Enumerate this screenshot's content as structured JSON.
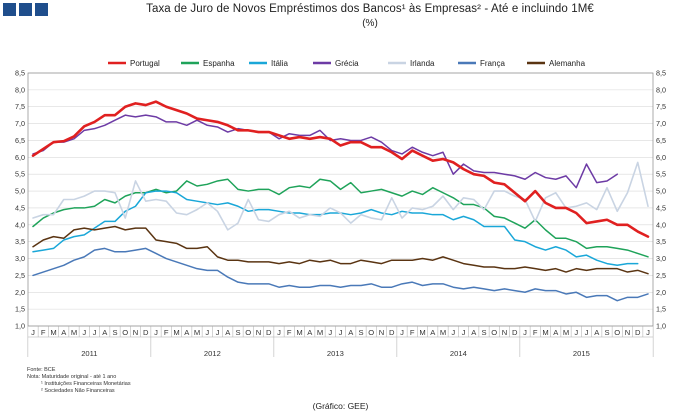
{
  "header": {
    "title": "Taxa de Juro de Novos Empréstimos dos Bancos¹ às Empresas² - Até e incluindo 1M€",
    "subtitle": "(%)"
  },
  "colors": {
    "logo": "#1f4e8c",
    "grid": "#d9d9d9",
    "axis": "#888888"
  },
  "footer": {
    "source": "Fonte: BCE",
    "note": "Nota: Maturidade original - até 1 ano",
    "note_1": "¹ Instituições Financeiras Monetárias",
    "note_2": "² Sociedades Não Financeiras",
    "credit": "(Gráfico: GEE)"
  },
  "chart_data": {
    "type": "line",
    "title": "Taxa de Juro de Novos Empréstimos dos Bancos¹ às Empresas² - Até e incluindo 1M€",
    "ylabel": "",
    "xlabel": "",
    "ylim": [
      1.0,
      8.5
    ],
    "yticks": [
      "1,0",
      "1,5",
      "2,0",
      "2,5",
      "3,0",
      "3,5",
      "4,0",
      "4,5",
      "5,0",
      "5,5",
      "6,0",
      "6,5",
      "7,0",
      "7,5",
      "8,0",
      "8,5"
    ],
    "month_labels": [
      "J",
      "F",
      "M",
      "A",
      "M",
      "J",
      "J",
      "A",
      "S",
      "O",
      "N",
      "D"
    ],
    "years": [
      "2011",
      "2012",
      "2013",
      "2014",
      "2015"
    ],
    "grid": true,
    "legend": "top",
    "series": [
      {
        "name": "Portugal",
        "color": "#e02020",
        "width": 2.6,
        "values": [
          6.05,
          6.25,
          6.45,
          6.48,
          6.62,
          6.92,
          7.05,
          7.25,
          7.25,
          7.5,
          7.6,
          7.55,
          7.65,
          7.5,
          7.4,
          7.3,
          7.15,
          7.1,
          7.05,
          6.95,
          6.8,
          6.8,
          6.75,
          6.75,
          6.65,
          6.55,
          6.6,
          6.55,
          6.6,
          6.55,
          6.35,
          6.45,
          6.45,
          6.3,
          6.3,
          6.15,
          5.95,
          6.2,
          6.05,
          5.9,
          5.95,
          5.85,
          5.65,
          5.5,
          5.45,
          5.25,
          5.2,
          4.95,
          4.7,
          5.0,
          4.65,
          4.5,
          4.5,
          4.35,
          4.05,
          4.1,
          4.15,
          4.0,
          4.0,
          3.8,
          3.65
        ]
      },
      {
        "name": "Espanha",
        "color": "#1fa35a",
        "width": 1.5,
        "values": [
          3.95,
          4.2,
          4.35,
          4.45,
          4.5,
          4.5,
          4.55,
          4.75,
          4.65,
          4.85,
          4.95,
          4.95,
          5.05,
          4.95,
          5.0,
          5.3,
          5.15,
          5.2,
          5.3,
          5.35,
          5.05,
          5.0,
          5.05,
          5.05,
          4.9,
          5.1,
          5.15,
          5.1,
          5.35,
          5.3,
          5.05,
          5.25,
          4.95,
          5.0,
          5.05,
          4.95,
          4.85,
          5.0,
          4.9,
          5.1,
          4.95,
          4.8,
          4.6,
          4.6,
          4.5,
          4.25,
          4.2,
          4.05,
          3.9,
          4.15,
          3.85,
          3.6,
          3.6,
          3.5,
          3.3,
          3.35,
          3.35,
          3.3,
          3.25,
          3.15,
          3.05
        ]
      },
      {
        "name": "Itália",
        "color": "#1aa7d8",
        "width": 1.5,
        "values": [
          3.2,
          3.25,
          3.3,
          3.55,
          3.65,
          3.7,
          3.9,
          4.1,
          4.1,
          4.4,
          4.55,
          4.95,
          5.0,
          5.0,
          4.95,
          4.75,
          4.7,
          4.65,
          4.6,
          4.65,
          4.55,
          4.4,
          4.45,
          4.45,
          4.4,
          4.35,
          4.35,
          4.3,
          4.3,
          4.35,
          4.35,
          4.3,
          4.35,
          4.45,
          4.35,
          4.3,
          4.4,
          4.35,
          4.35,
          4.3,
          4.3,
          4.15,
          4.25,
          4.15,
          3.95,
          3.95,
          3.95,
          3.55,
          3.5,
          3.35,
          3.25,
          3.35,
          3.25,
          3.05,
          3.1,
          2.95,
          2.85,
          2.8,
          2.85,
          2.85,
          null
        ]
      },
      {
        "name": "Grécia",
        "color": "#6d3ba5",
        "width": 1.5,
        "values": [
          6.1,
          6.2,
          6.45,
          6.45,
          6.55,
          6.8,
          6.85,
          6.95,
          7.1,
          7.25,
          7.2,
          7.25,
          7.2,
          7.05,
          7.05,
          6.95,
          7.1,
          6.95,
          6.9,
          6.75,
          6.85,
          6.8,
          6.75,
          6.75,
          6.55,
          6.7,
          6.65,
          6.65,
          6.8,
          6.5,
          6.55,
          6.5,
          6.5,
          6.6,
          6.45,
          6.2,
          6.1,
          6.3,
          6.15,
          6.05,
          6.15,
          5.5,
          5.8,
          5.6,
          5.55,
          5.55,
          5.5,
          5.45,
          5.35,
          5.55,
          5.4,
          5.35,
          5.45,
          5.1,
          5.8,
          5.25,
          5.3,
          5.5,
          null,
          null,
          null
        ]
      },
      {
        "name": "Irlanda",
        "color": "#c9d4e3",
        "width": 1.6,
        "values": [
          4.2,
          4.3,
          4.3,
          4.75,
          4.75,
          4.85,
          5.0,
          5.0,
          4.95,
          4.2,
          5.3,
          4.7,
          4.75,
          4.7,
          4.35,
          4.3,
          4.45,
          4.65,
          4.4,
          3.85,
          4.05,
          4.75,
          4.15,
          4.1,
          4.3,
          4.4,
          4.2,
          4.3,
          4.25,
          4.5,
          4.35,
          4.05,
          4.3,
          4.2,
          4.15,
          4.8,
          4.2,
          4.5,
          4.45,
          4.55,
          4.85,
          4.45,
          4.8,
          4.75,
          4.45,
          5.0,
          5.0,
          4.85,
          4.75,
          4.1,
          4.8,
          4.95,
          4.5,
          4.55,
          4.65,
          4.45,
          5.1,
          4.4,
          4.95,
          5.85,
          4.55
        ]
      },
      {
        "name": "França",
        "color": "#4a79b8",
        "width": 1.5,
        "values": [
          2.5,
          2.6,
          2.7,
          2.8,
          2.95,
          3.05,
          3.25,
          3.3,
          3.2,
          3.2,
          3.25,
          3.3,
          3.15,
          3.0,
          2.9,
          2.8,
          2.7,
          2.65,
          2.65,
          2.45,
          2.3,
          2.25,
          2.25,
          2.25,
          2.15,
          2.2,
          2.15,
          2.15,
          2.2,
          2.2,
          2.15,
          2.2,
          2.2,
          2.25,
          2.15,
          2.15,
          2.25,
          2.3,
          2.2,
          2.25,
          2.25,
          2.15,
          2.1,
          2.15,
          2.1,
          2.05,
          2.1,
          2.05,
          2.0,
          2.1,
          2.05,
          2.05,
          1.95,
          2.0,
          1.85,
          1.9,
          1.9,
          1.75,
          1.85,
          1.85,
          1.95
        ]
      },
      {
        "name": "Alemanha",
        "color": "#5a3412",
        "width": 1.5,
        "values": [
          3.35,
          3.55,
          3.65,
          3.6,
          3.85,
          3.9,
          3.85,
          3.9,
          3.95,
          3.85,
          3.9,
          3.9,
          3.55,
          3.5,
          3.45,
          3.3,
          3.3,
          3.35,
          3.05,
          2.95,
          2.95,
          2.9,
          2.9,
          2.9,
          2.85,
          2.9,
          2.85,
          2.95,
          2.9,
          2.95,
          2.85,
          2.85,
          2.95,
          2.9,
          2.85,
          2.95,
          2.95,
          2.95,
          3.0,
          2.95,
          3.05,
          2.95,
          2.85,
          2.8,
          2.75,
          2.75,
          2.7,
          2.7,
          2.75,
          2.7,
          2.65,
          2.7,
          2.6,
          2.7,
          2.65,
          2.7,
          2.7,
          2.7,
          2.6,
          2.65,
          2.55
        ]
      }
    ]
  }
}
